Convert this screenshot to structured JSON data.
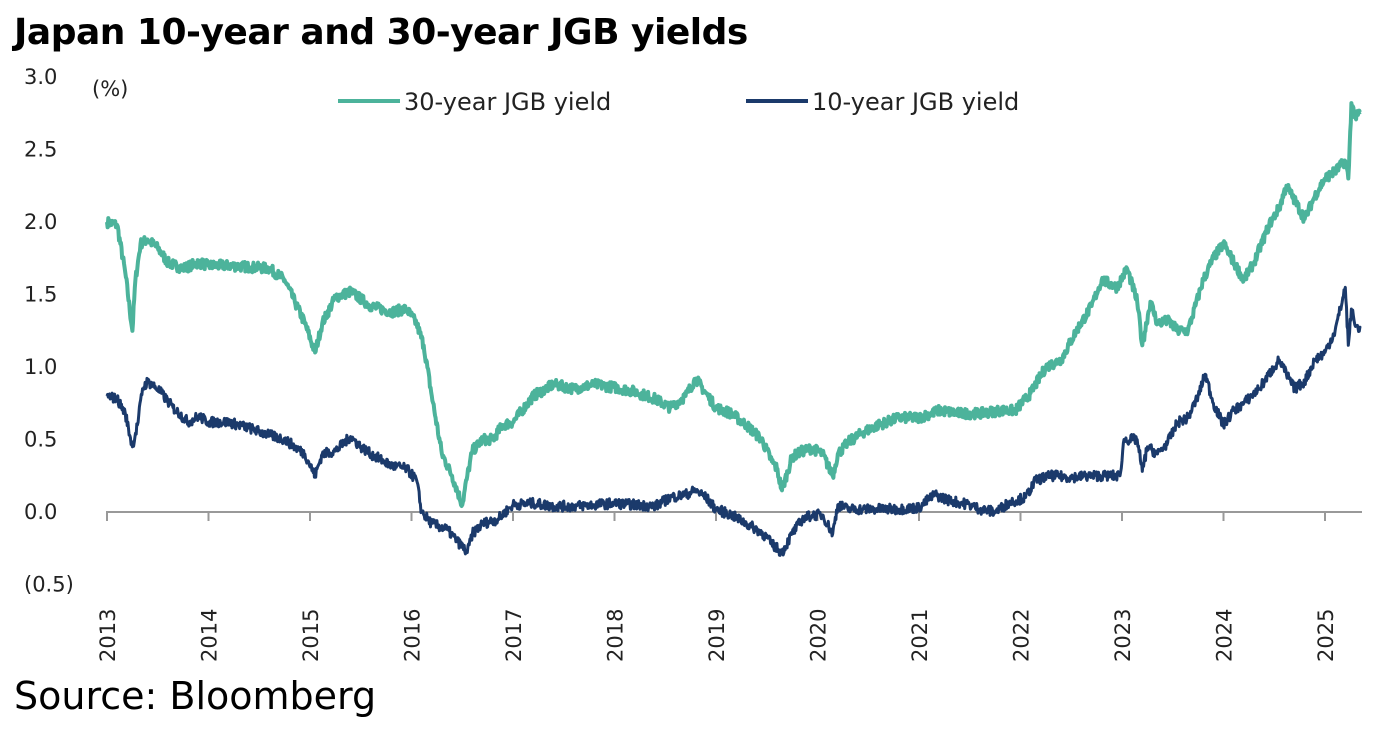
{
  "title": "Japan 10-year and 30-year JGB yields",
  "source": "Source: Bloomberg",
  "chart_data": {
    "type": "line",
    "title": "Japan 10-year and 30-year JGB yields",
    "ylabel": "(%)",
    "xlabel": "",
    "ylim": [
      -0.5,
      3.0
    ],
    "y_ticks": [
      3.0,
      2.5,
      2.0,
      1.5,
      1.0,
      0.5,
      0.0,
      -0.5
    ],
    "y_tick_labels": [
      "3.0",
      "2.5",
      "2.0",
      "1.5",
      "1.0",
      "0.5",
      "0.0",
      "(0.5)"
    ],
    "xlim": [
      2013.0,
      2025.35
    ],
    "x_tick_labels": [
      "2013",
      "2014",
      "2015",
      "2016",
      "2017",
      "2018",
      "2019",
      "2020",
      "2021",
      "2022",
      "2023",
      "2024",
      "2025"
    ],
    "grid": false,
    "legend_position": "top",
    "series": [
      {
        "name": "30-year JGB yield",
        "color": "#4cb39b",
        "x": [
          2013.0,
          2013.1,
          2013.18,
          2013.25,
          2013.28,
          2013.33,
          2013.4,
          2013.5,
          2013.6,
          2013.75,
          2013.9,
          2014.0,
          2014.2,
          2014.4,
          2014.6,
          2014.75,
          2014.85,
          2014.95,
          2015.05,
          2015.12,
          2015.25,
          2015.4,
          2015.6,
          2015.8,
          2015.95,
          2016.05,
          2016.12,
          2016.2,
          2016.3,
          2016.4,
          2016.5,
          2016.55,
          2016.6,
          2016.7,
          2016.8,
          2016.9,
          2017.0,
          2017.2,
          2017.4,
          2017.6,
          2017.8,
          2018.0,
          2018.2,
          2018.4,
          2018.55,
          2018.7,
          2018.8,
          2018.9,
          2019.0,
          2019.15,
          2019.3,
          2019.45,
          2019.55,
          2019.6,
          2019.65,
          2019.75,
          2019.85,
          2019.95,
          2020.05,
          2020.15,
          2020.2,
          2020.3,
          2020.45,
          2020.6,
          2020.8,
          2021.0,
          2021.2,
          2021.4,
          2021.6,
          2021.8,
          2021.95,
          2022.1,
          2022.25,
          2022.4,
          2022.55,
          2022.7,
          2022.8,
          2022.95,
          2023.05,
          2023.15,
          2023.2,
          2023.28,
          2023.35,
          2023.45,
          2023.55,
          2023.65,
          2023.8,
          2023.9,
          2024.0,
          2024.12,
          2024.2,
          2024.3,
          2024.45,
          2024.55,
          2024.62,
          2024.7,
          2024.8,
          2024.9,
          2025.0,
          2025.1,
          2025.2,
          2025.23,
          2025.26,
          2025.3,
          2025.35
        ],
        "values": [
          2.0,
          1.98,
          1.65,
          1.25,
          1.6,
          1.85,
          1.88,
          1.82,
          1.72,
          1.68,
          1.72,
          1.7,
          1.7,
          1.69,
          1.68,
          1.6,
          1.45,
          1.3,
          1.1,
          1.3,
          1.48,
          1.52,
          1.42,
          1.38,
          1.4,
          1.3,
          1.15,
          0.8,
          0.4,
          0.25,
          0.05,
          0.25,
          0.42,
          0.5,
          0.5,
          0.6,
          0.62,
          0.8,
          0.88,
          0.85,
          0.88,
          0.86,
          0.83,
          0.78,
          0.72,
          0.8,
          0.92,
          0.82,
          0.72,
          0.68,
          0.6,
          0.5,
          0.35,
          0.3,
          0.15,
          0.38,
          0.42,
          0.44,
          0.4,
          0.25,
          0.4,
          0.48,
          0.55,
          0.6,
          0.65,
          0.65,
          0.7,
          0.68,
          0.68,
          0.7,
          0.7,
          0.82,
          1.0,
          1.05,
          1.25,
          1.42,
          1.6,
          1.55,
          1.68,
          1.45,
          1.15,
          1.45,
          1.3,
          1.32,
          1.25,
          1.25,
          1.6,
          1.75,
          1.85,
          1.7,
          1.6,
          1.72,
          1.98,
          2.1,
          2.25,
          2.15,
          2.02,
          2.18,
          2.3,
          2.35,
          2.42,
          2.3,
          2.82,
          2.72,
          2.76
        ]
      },
      {
        "name": "10-year JGB yield",
        "color": "#1b3a6b",
        "x": [
          2013.0,
          2013.1,
          2013.18,
          2013.25,
          2013.3,
          2013.35,
          2013.4,
          2013.5,
          2013.65,
          2013.8,
          2013.9,
          2014.0,
          2014.2,
          2014.4,
          2014.6,
          2014.75,
          2014.85,
          2014.95,
          2015.05,
          2015.12,
          2015.25,
          2015.4,
          2015.5,
          2015.6,
          2015.8,
          2015.95,
          2016.05,
          2016.1,
          2016.2,
          2016.35,
          2016.45,
          2016.55,
          2016.6,
          2016.7,
          2016.85,
          2017.0,
          2017.2,
          2017.4,
          2017.6,
          2017.8,
          2018.0,
          2018.2,
          2018.4,
          2018.55,
          2018.7,
          2018.8,
          2018.9,
          2019.0,
          2019.15,
          2019.3,
          2019.45,
          2019.55,
          2019.65,
          2019.75,
          2019.85,
          2019.95,
          2020.05,
          2020.15,
          2020.2,
          2020.3,
          2020.45,
          2020.6,
          2020.8,
          2021.0,
          2021.15,
          2021.3,
          2021.5,
          2021.6,
          2021.75,
          2021.9,
          2022.05,
          2022.15,
          2022.3,
          2022.5,
          2022.7,
          2022.9,
          2022.98,
          2023.02,
          2023.15,
          2023.2,
          2023.25,
          2023.35,
          2023.45,
          2023.55,
          2023.65,
          2023.75,
          2023.82,
          2023.9,
          2024.0,
          2024.1,
          2024.2,
          2024.35,
          2024.5,
          2024.55,
          2024.62,
          2024.7,
          2024.8,
          2024.9,
          2025.0,
          2025.1,
          2025.2,
          2025.23,
          2025.26,
          2025.3,
          2025.35
        ],
        "values": [
          0.8,
          0.78,
          0.68,
          0.45,
          0.6,
          0.85,
          0.9,
          0.85,
          0.72,
          0.62,
          0.66,
          0.62,
          0.62,
          0.58,
          0.53,
          0.5,
          0.45,
          0.4,
          0.25,
          0.4,
          0.42,
          0.52,
          0.45,
          0.4,
          0.32,
          0.3,
          0.22,
          0.0,
          -0.08,
          -0.12,
          -0.2,
          -0.28,
          -0.15,
          -0.08,
          -0.05,
          0.05,
          0.06,
          0.04,
          0.04,
          0.05,
          0.06,
          0.05,
          0.04,
          0.1,
          0.12,
          0.15,
          0.1,
          0.02,
          -0.02,
          -0.08,
          -0.14,
          -0.22,
          -0.28,
          -0.15,
          -0.05,
          -0.02,
          -0.02,
          -0.15,
          0.05,
          0.02,
          0.02,
          0.02,
          0.02,
          0.03,
          0.12,
          0.08,
          0.05,
          0.02,
          0.0,
          0.07,
          0.1,
          0.22,
          0.25,
          0.24,
          0.25,
          0.25,
          0.25,
          0.5,
          0.5,
          0.28,
          0.45,
          0.4,
          0.48,
          0.62,
          0.65,
          0.8,
          0.95,
          0.75,
          0.6,
          0.7,
          0.75,
          0.85,
          1.0,
          1.05,
          0.95,
          0.85,
          0.9,
          1.05,
          1.1,
          1.25,
          1.55,
          1.15,
          1.4,
          1.28,
          1.27
        ]
      }
    ]
  }
}
